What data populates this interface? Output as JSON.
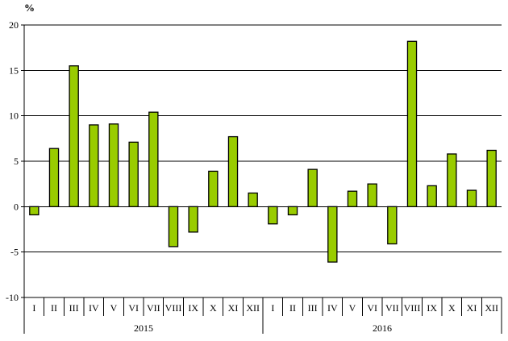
{
  "chart_data": {
    "type": "bar",
    "unit_label": "%",
    "ylim": [
      -10,
      20
    ],
    "yticks": [
      -10,
      -5,
      0,
      5,
      10,
      15,
      20
    ],
    "grid": true,
    "legend": "none",
    "bar_color": "#99cc00",
    "bar_edge_color": "#000000",
    "groups": [
      {
        "label": "2015",
        "categories": [
          "I",
          "II",
          "III",
          "IV",
          "V",
          "VI",
          "VII",
          "VIII",
          "IX",
          "X",
          "XI",
          "XII"
        ]
      },
      {
        "label": "2016",
        "categories": [
          "I",
          "II",
          "III",
          "IV",
          "V",
          "VI",
          "VII",
          "VIII",
          "IX",
          "X",
          "XI",
          "XII"
        ]
      }
    ],
    "values": [
      -0.9,
      6.4,
      15.5,
      9.0,
      9.1,
      7.1,
      10.4,
      -4.4,
      -2.8,
      3.9,
      7.7,
      1.5,
      -1.9,
      -0.9,
      4.1,
      -6.1,
      1.7,
      2.5,
      -4.1,
      18.2,
      2.3,
      5.8,
      1.8,
      6.2
    ]
  }
}
